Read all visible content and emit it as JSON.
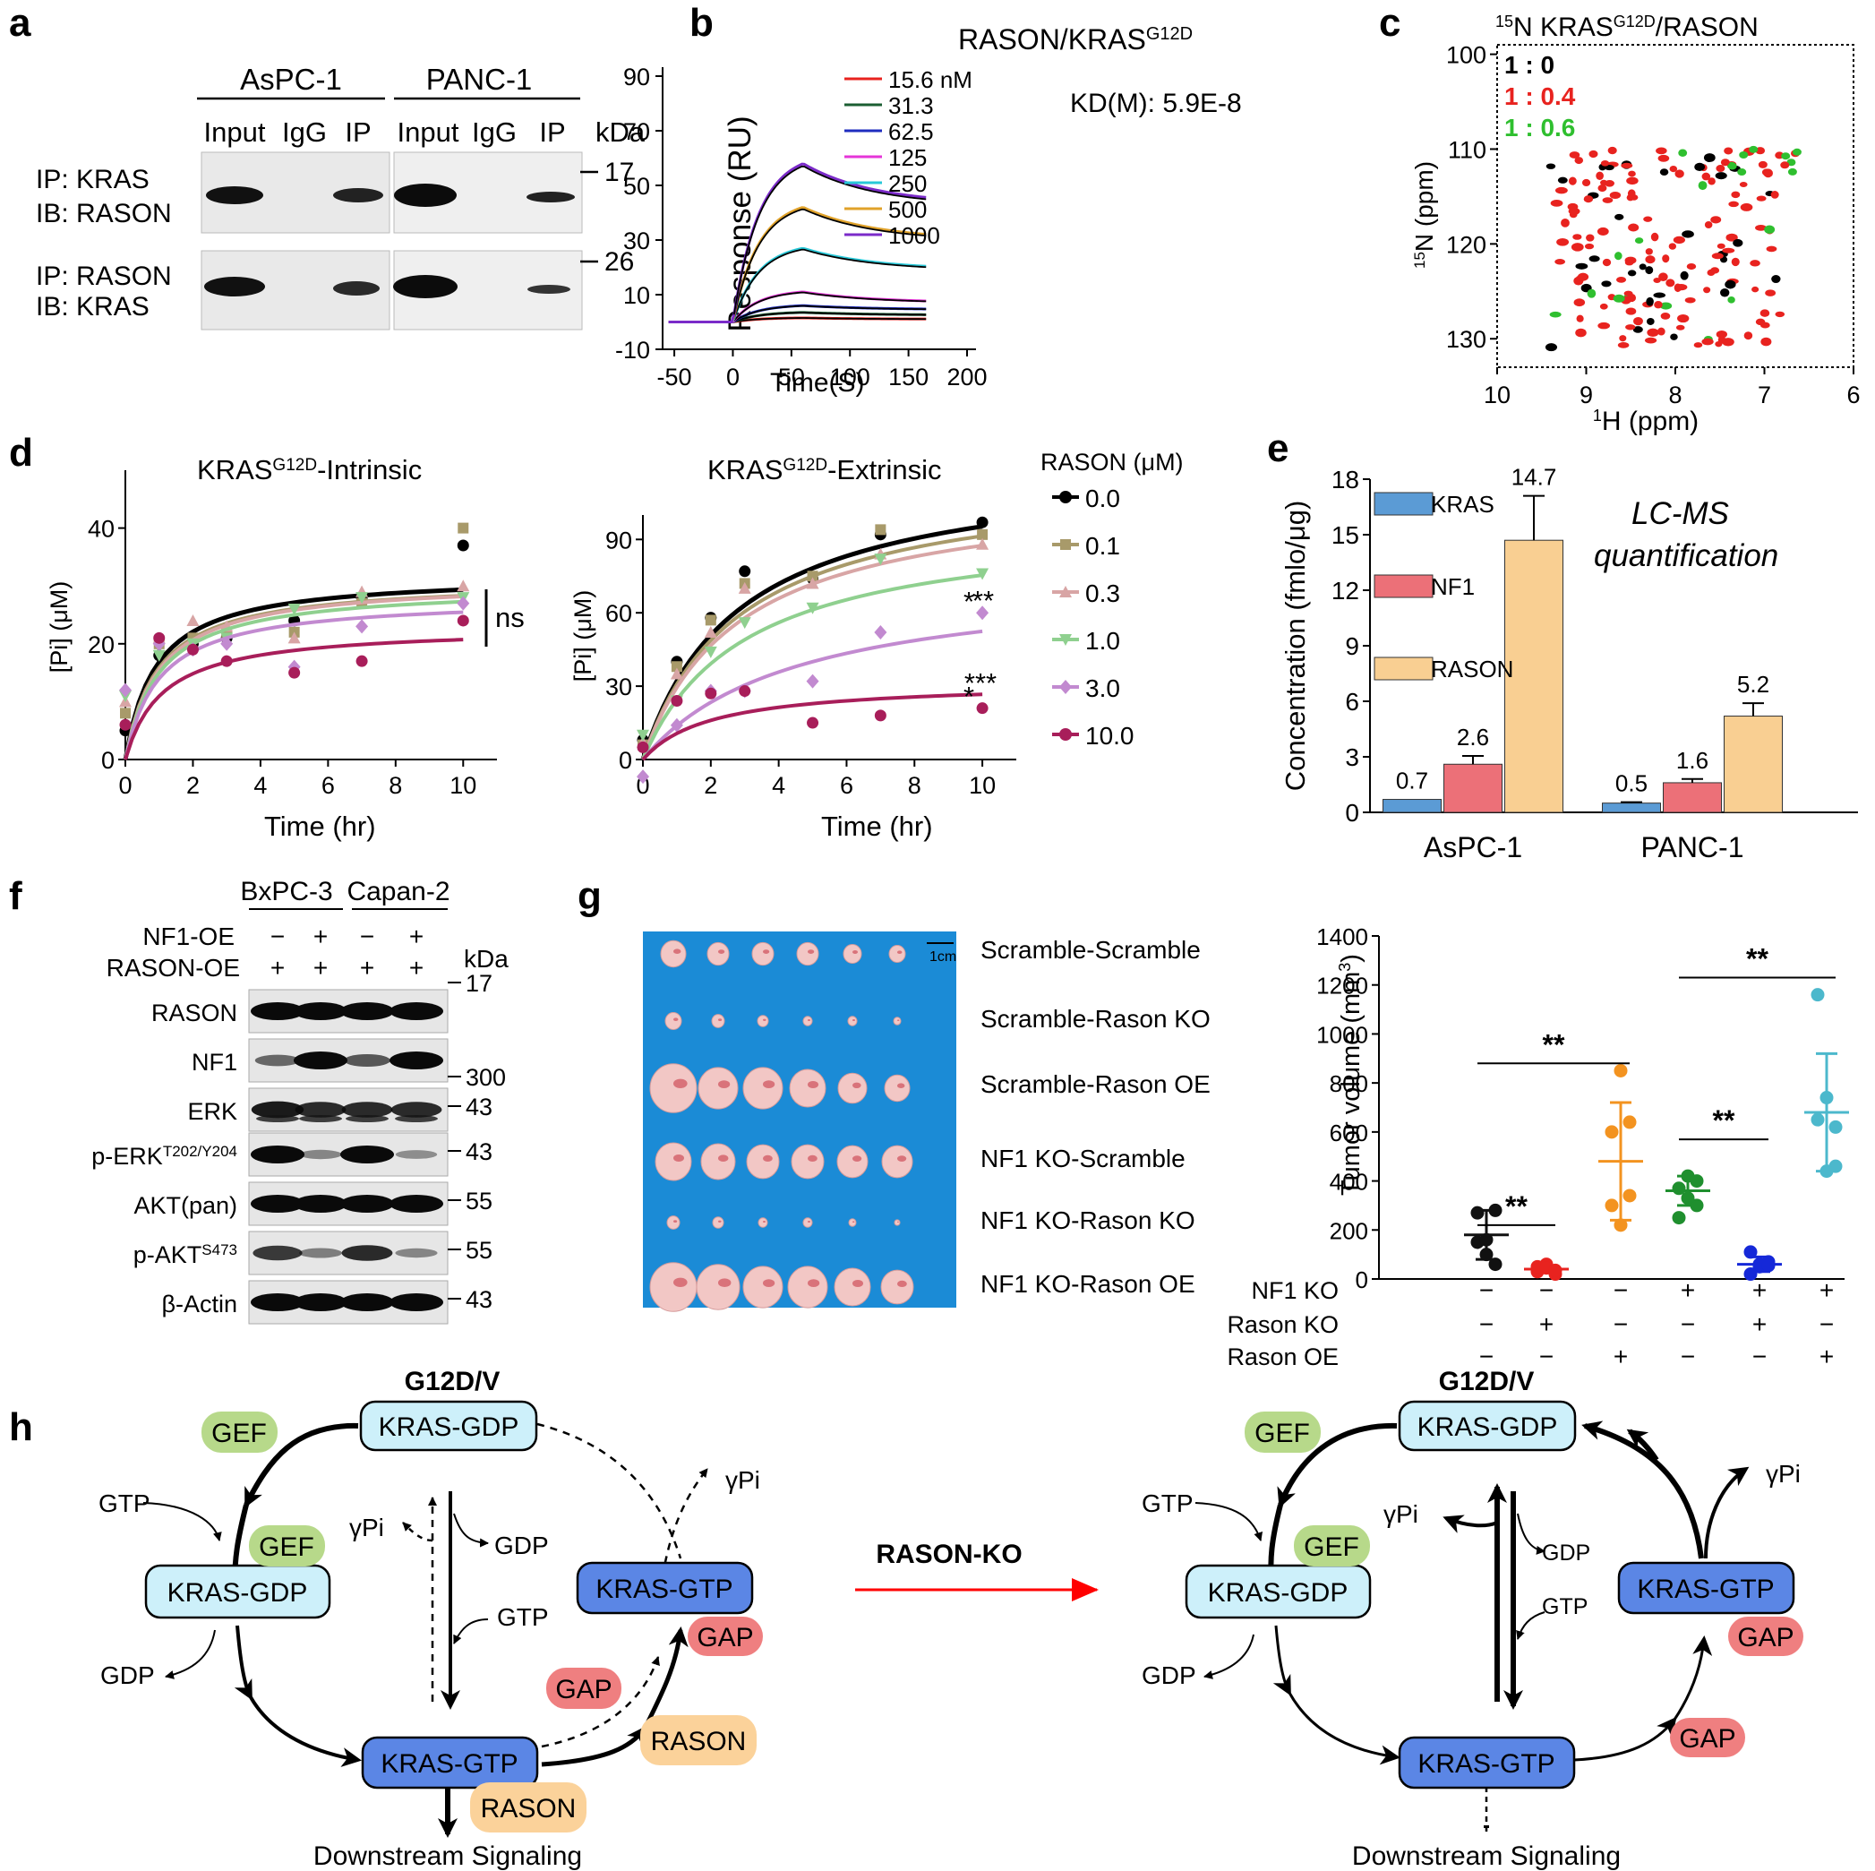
{
  "panel_a": {
    "letter": "a",
    "groups": [
      "AsPC-1",
      "PANC-1"
    ],
    "lanes": [
      "Input",
      "IgG",
      "IP",
      "Input",
      "IgG",
      "IP"
    ],
    "kda_label": "kDa",
    "markers": [
      "17",
      "26"
    ],
    "rows": [
      {
        "ip": "IP: KRAS",
        "ib": "IB: RASON"
      },
      {
        "ip": "IP: RASON",
        "ib": "IB: KRAS"
      }
    ]
  },
  "panel_b": {
    "letter": "b",
    "title": "RASON/KRAS",
    "title_sup": "G12D",
    "kd_label": "KD(M): 5.9E-8",
    "ylabel": "Response (RU)",
    "xlabel": "Time(S)",
    "legend": [
      "15.6 nM",
      "31.3",
      "62.5",
      "125",
      "250",
      "500",
      "1000"
    ]
  },
  "panel_c": {
    "letter": "c",
    "title_pre": "15",
    "title_mid": "N KRAS",
    "title_sup": "G12D",
    "title_post": "/RASON",
    "ratios": [
      "1 : 0",
      "1 : 0.4",
      "1 : 0.6"
    ],
    "ylabel_sup": "15",
    "ylabel": "N (ppm)",
    "xlabel_sup": "1",
    "xlabel": "H (ppm)"
  },
  "panel_d": {
    "letter": "d",
    "left_title": "KRAS",
    "left_title_sup": "G12D",
    "left_title_post": "-Intrinsic",
    "right_title": "KRAS",
    "right_title_sup": "G12D",
    "right_title_post": "-Extrinsic",
    "ylabel": "[Pi] (μM)",
    "xlabel": "Time (hr)",
    "ns_label": "ns",
    "legend_title": "RASON (μM)",
    "legend": [
      "0.0",
      "0.1",
      "0.3",
      "1.0",
      "3.0",
      "10.0"
    ],
    "significance": [
      "*",
      "**",
      "***"
    ]
  },
  "panel_e": {
    "letter": "e",
    "annotation_1": "LC-MS",
    "annotation_2": "quantification"
  },
  "panel_f": {
    "letter": "f",
    "groups": [
      "BxPC-3",
      "Capan-2"
    ],
    "row_labels": [
      "NF1-OE",
      "RASON-OE"
    ],
    "nf1_signs": [
      "−",
      "+",
      "−",
      "+"
    ],
    "rason_signs": [
      "+",
      "+",
      "+",
      "+"
    ],
    "kda_label": "kDa",
    "blots": [
      {
        "name": "RASON",
        "sup": "",
        "marker": "17"
      },
      {
        "name": "NF1",
        "sup": "",
        "marker": "300"
      },
      {
        "name": "ERK",
        "sup": "",
        "marker": "43"
      },
      {
        "name": "p-ERK",
        "sup": "T202/Y204",
        "marker": "43"
      },
      {
        "name": "AKT(pan)",
        "sup": "",
        "marker": "55"
      },
      {
        "name": "p-AKT",
        "sup": "S473",
        "marker": "55"
      },
      {
        "name": "β-Actin",
        "sup": "",
        "marker": "43"
      }
    ]
  },
  "panel_g": {
    "letter": "g",
    "scale_label": "1cm",
    "rows": [
      "Scramble-Scramble",
      "Scramble-Rason KO",
      "Scramble-Rason OE",
      "NF1 KO-Scramble",
      "NF1 KO-Rason KO",
      "NF1 KO-Rason OE"
    ],
    "ylabel": "Tumor volume (mm",
    "ylabel_sup": "3",
    "ylabel_end": ")",
    "factor_labels": [
      "NF1 KO",
      "Rason KO",
      "Rason OE"
    ],
    "factor_signs": [
      [
        "−",
        "−",
        "−",
        "+",
        "+",
        "+"
      ],
      [
        "−",
        "+",
        "−",
        "−",
        "+",
        "−"
      ],
      [
        "−",
        "−",
        "+",
        "−",
        "−",
        "+"
      ]
    ],
    "significance": "**"
  },
  "panel_h": {
    "letter": "h",
    "mutation": "G12D/V",
    "arrow_label": "RASON-KO",
    "kras_gdp": "KRAS-GDP",
    "kras_gtp": "KRAS-GTP",
    "gef": "GEF",
    "gap": "GAP",
    "rason": "RASON",
    "gtp": "GTP",
    "gdp": "GDP",
    "gamma_pi": "γPi",
    "downstream": "Downstream Signaling"
  },
  "chart_data": [
    {
      "panel": "b",
      "type": "line",
      "title": "RASON/KRASG12D",
      "xlabel": "Time(S)",
      "ylabel": "Response (RU)",
      "xlim": [
        -60,
        200
      ],
      "ylim": [
        -10,
        90
      ],
      "xticks": [
        -50,
        0,
        50,
        100,
        150,
        200
      ],
      "yticks": [
        -10,
        10,
        30,
        50,
        70,
        90
      ],
      "series": [
        {
          "name": "15.6 nM",
          "color": "#e8231f",
          "plateau": 1.5,
          "final": 1.0
        },
        {
          "name": "31.3",
          "color": "#1b5e32",
          "plateau": 3.5,
          "final": 2.5
        },
        {
          "name": "62.5",
          "color": "#1f2dbf",
          "plateau": 6,
          "final": 4.5
        },
        {
          "name": "125",
          "color": "#e535d8",
          "plateau": 11,
          "final": 7
        },
        {
          "name": "250",
          "color": "#28c8d8",
          "plateau": 27,
          "final": 19
        },
        {
          "name": "500",
          "color": "#e0a22a",
          "plateau": 42,
          "final": 30
        },
        {
          "name": "1000",
          "color": "#7b2bc9",
          "plateau": 58,
          "final": 43
        }
      ]
    },
    {
      "panel": "c",
      "type": "scatter",
      "xlabel": "1H (ppm)",
      "ylabel": "15N (ppm)",
      "xlim": [
        10,
        6
      ],
      "ylim": [
        133,
        99
      ],
      "xticks": [
        10,
        9,
        8,
        7,
        6
      ],
      "yticks": [
        100,
        110,
        120,
        130
      ],
      "series": [
        {
          "name": "1 : 0",
          "color": "#000000"
        },
        {
          "name": "1 : 0.4",
          "color": "#e8231f"
        },
        {
          "name": "1 : 0.6",
          "color": "#2fbf2f"
        }
      ]
    },
    {
      "panel": "d-left",
      "type": "scatter",
      "title": "KRASG12D-Intrinsic",
      "xlabel": "Time (hr)",
      "ylabel": "[Pi] (μM)",
      "xlim": [
        0,
        11
      ],
      "ylim": [
        0,
        50
      ],
      "xticks": [
        0,
        2,
        4,
        6,
        8,
        10
      ],
      "yticks": [
        0,
        20,
        40
      ],
      "x": [
        0,
        1,
        2,
        3,
        5,
        7,
        10
      ],
      "series": [
        {
          "name": "0.0",
          "color": "#000000",
          "values": [
            5,
            18,
            20,
            21,
            24,
            28,
            37
          ],
          "vmax": 32,
          "k": 0.9
        },
        {
          "name": "0.1",
          "color": "#a89a6a",
          "values": [
            8,
            20,
            21,
            22,
            22,
            27,
            40
          ],
          "vmax": 31,
          "k": 0.95
        },
        {
          "name": "0.3",
          "color": "#d8a5a5",
          "values": [
            10,
            21,
            24,
            23,
            21,
            29,
            30
          ],
          "vmax": 31,
          "k": 1.0
        },
        {
          "name": "1.0",
          "color": "#8fd08f",
          "values": [
            11,
            18,
            20,
            21,
            26,
            28,
            28
          ],
          "vmax": 30,
          "k": 1.0
        },
        {
          "name": "3.0",
          "color": "#c28ad0",
          "values": [
            12,
            20,
            19,
            20,
            16,
            23,
            27
          ],
          "vmax": 28,
          "k": 1.0
        },
        {
          "name": "10.0",
          "color": "#a81e5a",
          "values": [
            6,
            21,
            19,
            17,
            15,
            17,
            24
          ],
          "vmax": 23,
          "k": 1.1
        }
      ]
    },
    {
      "panel": "d-right",
      "type": "scatter",
      "title": "KRASG12D-Extrinsic",
      "xlabel": "Time (hr)",
      "ylabel": "[Pi] (μM)",
      "xlim": [
        0,
        11
      ],
      "ylim": [
        0,
        100
      ],
      "xticks": [
        0,
        2,
        4,
        6,
        8,
        10
      ],
      "yticks": [
        0,
        30,
        60,
        90
      ],
      "x": [
        0,
        1,
        2,
        3,
        5,
        7,
        10
      ],
      "series": [
        {
          "name": "0.0",
          "color": "#000000",
          "values": [
            8,
            40,
            58,
            77,
            74,
            92,
            97
          ],
          "vmax": 122,
          "k": 2.8
        },
        {
          "name": "0.1",
          "color": "#a89a6a",
          "values": [
            6,
            38,
            57,
            72,
            75,
            94,
            92
          ],
          "vmax": 117,
          "k": 2.8
        },
        {
          "name": "0.3",
          "color": "#d8a5a5",
          "values": [
            7,
            35,
            52,
            70,
            72,
            84,
            88
          ],
          "vmax": 112,
          "k": 2.8
        },
        {
          "name": "1.0",
          "color": "#8fd08f",
          "values": [
            10,
            24,
            44,
            56,
            62,
            82,
            76
          ],
          "vmax": 98,
          "k": 3.0
        },
        {
          "name": "3.0",
          "color": "#c28ad0",
          "values": [
            -7,
            14,
            28,
            28,
            32,
            52,
            60
          ],
          "vmax": 76,
          "k": 4.5
        },
        {
          "name": "10.0",
          "color": "#a81e5a",
          "values": [
            5,
            24,
            27,
            28,
            15,
            18,
            21
          ],
          "vmax": 32,
          "k": 2.0
        }
      ]
    },
    {
      "panel": "e",
      "type": "bar",
      "ylabel": "Concentration (fmlo/μg)",
      "categories": [
        "AsPC-1",
        "PANC-1"
      ],
      "ylim": [
        0,
        18
      ],
      "yticks": [
        0,
        3,
        6,
        9,
        12,
        15,
        18
      ],
      "series": [
        {
          "name": "KRAS",
          "color": "#5b9bd5",
          "values": [
            0.7,
            0.5
          ],
          "errors": [
            0,
            0.05
          ],
          "labels": [
            "0.7",
            "0.5"
          ]
        },
        {
          "name": "NF1",
          "color": "#ec7078",
          "values": [
            2.6,
            1.6
          ],
          "errors": [
            0.45,
            0.2
          ],
          "labels": [
            "2.6",
            "1.6"
          ]
        },
        {
          "name": "RASON",
          "color": "#f9cf92",
          "values": [
            14.7,
            5.2
          ],
          "errors": [
            2.4,
            0.7
          ],
          "labels": [
            "14.7",
            "5.2"
          ]
        }
      ]
    },
    {
      "panel": "g",
      "type": "scatter",
      "ylabel": "Tumor volume (mm3)",
      "ylim": [
        0,
        1400
      ],
      "yticks": [
        0,
        200,
        400,
        600,
        800,
        1000,
        1200,
        1400
      ],
      "groups": [
        {
          "color": "#111111",
          "mean": 180,
          "sd": 100,
          "points": [
            150,
            100,
            280,
            270,
            160,
            60
          ]
        },
        {
          "color": "#e8231f",
          "mean": 40,
          "sd": 15,
          "points": [
            30,
            60,
            20,
            50,
            45,
            35
          ]
        },
        {
          "color": "#f39320",
          "mean": 480,
          "sd": 240,
          "points": [
            300,
            850,
            640,
            600,
            220,
            340
          ]
        },
        {
          "color": "#1f8f2e",
          "mean": 360,
          "sd": 60,
          "points": [
            250,
            420,
            300,
            370,
            330,
            400
          ]
        },
        {
          "color": "#1528d8",
          "mean": 60,
          "sd": 30,
          "points": [
            20,
            50,
            70,
            110,
            60,
            55
          ]
        },
        {
          "color": "#4cb8cc",
          "mean": 680,
          "sd": 240,
          "points": [
            1160,
            740,
            460,
            650,
            440,
            620
          ]
        }
      ],
      "comparisons": [
        {
          "from": 0,
          "to": 1,
          "value": 220,
          "label": "**"
        },
        {
          "from": 0,
          "to": 2,
          "value": 880,
          "label": "**"
        },
        {
          "from": 3,
          "to": 4,
          "value": 570,
          "label": "**"
        },
        {
          "from": 3,
          "to": 5,
          "value": 1230,
          "label": "**"
        }
      ]
    }
  ]
}
